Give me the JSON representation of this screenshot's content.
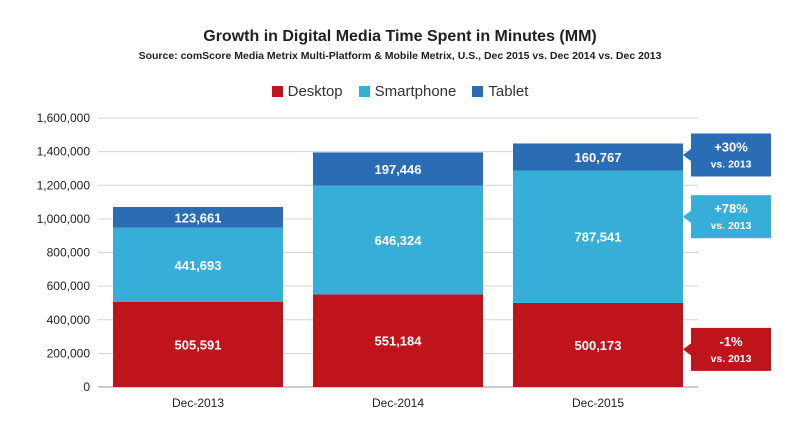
{
  "chart_data": {
    "type": "bar",
    "stacked": true,
    "title": "Growth in Digital Media Time Spent in Minutes (MM)",
    "subtitle": "Source: comScore Media Metrix Multi-Platform & Mobile Metrix, U.S., Dec 2015 vs. Dec 2014 vs. Dec 2013",
    "categories": [
      "Dec-2013",
      "Dec-2014",
      "Dec-2015"
    ],
    "series": [
      {
        "name": "Desktop",
        "color": "#c0141c",
        "values": [
          505591,
          551184,
          500173
        ],
        "labels": [
          "505,591",
          "551,184",
          "500,173"
        ]
      },
      {
        "name": "Smartphone",
        "color": "#36aed8",
        "values": [
          441693,
          646324,
          787541
        ],
        "labels": [
          "441,693",
          "646,324",
          "787,541"
        ]
      },
      {
        "name": "Tablet",
        "color": "#2a6db5",
        "values": [
          123661,
          197446,
          160767
        ],
        "labels": [
          "123,661",
          "197,446",
          "160,767"
        ]
      }
    ],
    "ylim": [
      0,
      1600000
    ],
    "yticks": [
      0,
      200000,
      400000,
      600000,
      800000,
      1000000,
      1200000,
      1400000,
      1600000
    ],
    "ytick_labels": [
      "0",
      "200,000",
      "400,000",
      "600,000",
      "800,000",
      "1,000,000",
      "1,200,000",
      "1,400,000",
      "1,600,000"
    ],
    "legend_position": "top-center",
    "grid": true,
    "annotations": [
      {
        "series": "Tablet",
        "main": "+30%",
        "sub": "vs. 2013"
      },
      {
        "series": "Smartphone",
        "main": "+78%",
        "sub": "vs. 2013"
      },
      {
        "series": "Desktop",
        "main": "-1%",
        "sub": "vs. 2013"
      }
    ]
  }
}
